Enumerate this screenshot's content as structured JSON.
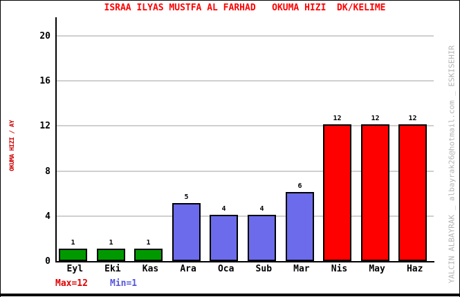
{
  "watermark": {
    "text": "YALCIN ALBAYRAK _ albayrak26@hotmail.com _ ESKISEHIR",
    "color": "#b4b4b4"
  },
  "colors": {
    "title": "#ff0000",
    "ylabel": "#cc0000",
    "gridline": "#cfcfcf",
    "axis": "#000000",
    "max_annotation": "#dd0000",
    "min_annotation": "#5555dd"
  },
  "chart_data": {
    "type": "bar",
    "title": "ISRAA ILYAS MUSTFA AL FARHAD   OKUMA HIZI  DK/KELIME",
    "xlabel": "",
    "ylabel": "OKUMA HIZI / AY",
    "categories": [
      "Eyl",
      "Eki",
      "Kas",
      "Ara",
      "Oca",
      "Sub",
      "Mar",
      "Nis",
      "May",
      "Haz"
    ],
    "values": [
      1,
      1,
      1,
      5,
      4,
      4,
      6,
      12,
      12,
      12
    ],
    "bar_colors": [
      "#009a00",
      "#009a00",
      "#009a00",
      "#6b6beb",
      "#6b6beb",
      "#6b6beb",
      "#6b6beb",
      "#ff0000",
      "#ff0000",
      "#ff0000"
    ],
    "value_labels": [
      "1",
      "1",
      "1",
      "5",
      "4",
      "4",
      "6",
      "12",
      "12",
      "12"
    ],
    "yticks": [
      0,
      4,
      8,
      12,
      16,
      20
    ],
    "ylim": [
      0,
      21.6
    ],
    "grid": "horizontal-only",
    "legend": "none",
    "annotations": [
      {
        "name": "max",
        "text": "Max=12"
      },
      {
        "name": "min",
        "text": "Min=1"
      }
    ]
  }
}
